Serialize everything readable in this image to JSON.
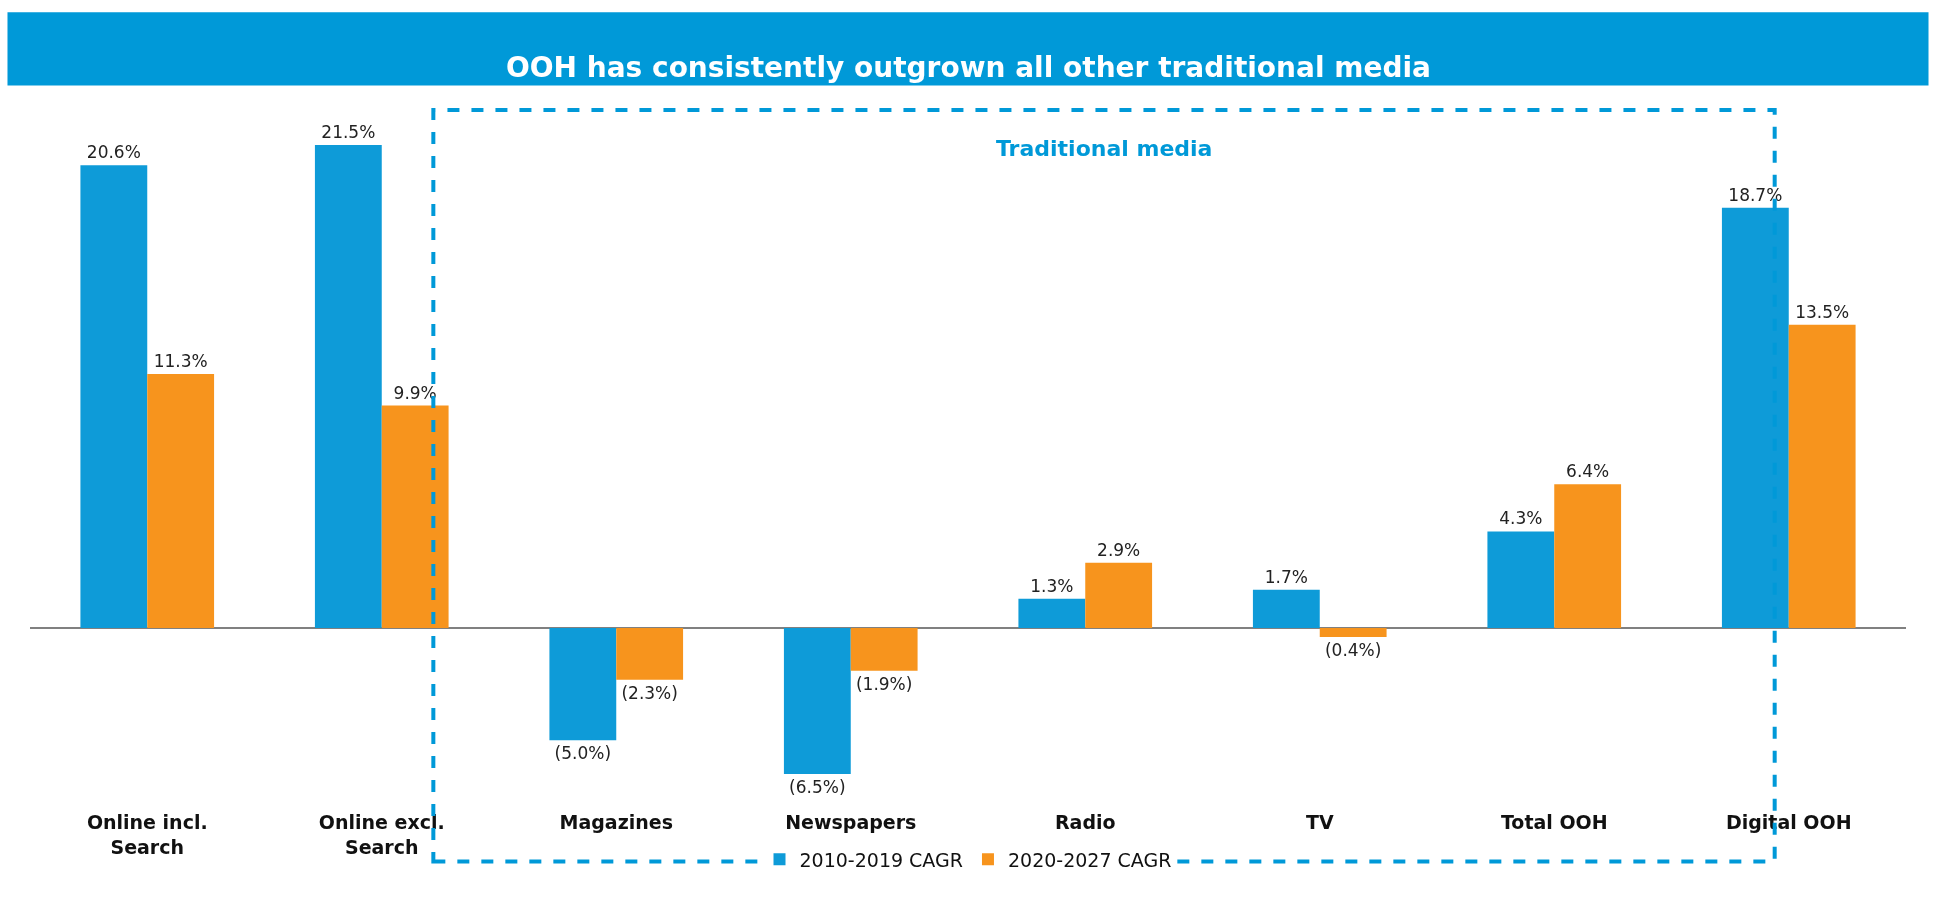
{
  "chart_data": {
    "type": "bar",
    "title": "OOH has consistently outgrown all other traditional media",
    "categories": [
      "Online incl. Search",
      "Online excl. Search",
      "Magazines",
      "Newspapers",
      "Radio",
      "TV",
      "Total OOH",
      "Digital OOH"
    ],
    "series": [
      {
        "name": "2010-2019 CAGR",
        "color": "#0e9bd8",
        "values": [
          20.6,
          21.5,
          -5.0,
          -6.5,
          1.3,
          1.7,
          4.3,
          18.7
        ],
        "value_labels": [
          "20.6%",
          "21.5%",
          "(5.0%)",
          "(6.5%)",
          "1.3%",
          "1.7%",
          "4.3%",
          "18.7%"
        ]
      },
      {
        "name": "2020-2027 CAGR",
        "color": "#f7941d",
        "values": [
          11.3,
          9.9,
          -2.3,
          -1.9,
          2.9,
          -0.4,
          6.4,
          13.5
        ],
        "value_labels": [
          "11.3%",
          "9.9%",
          "(2.3%)",
          "(1.9%)",
          "2.9%",
          "(0.4%)",
          "6.4%",
          "13.5%"
        ]
      }
    ],
    "tick_labels": "x",
    "annotations": [
      "Traditional media"
    ],
    "legend": "bottom"
  }
}
